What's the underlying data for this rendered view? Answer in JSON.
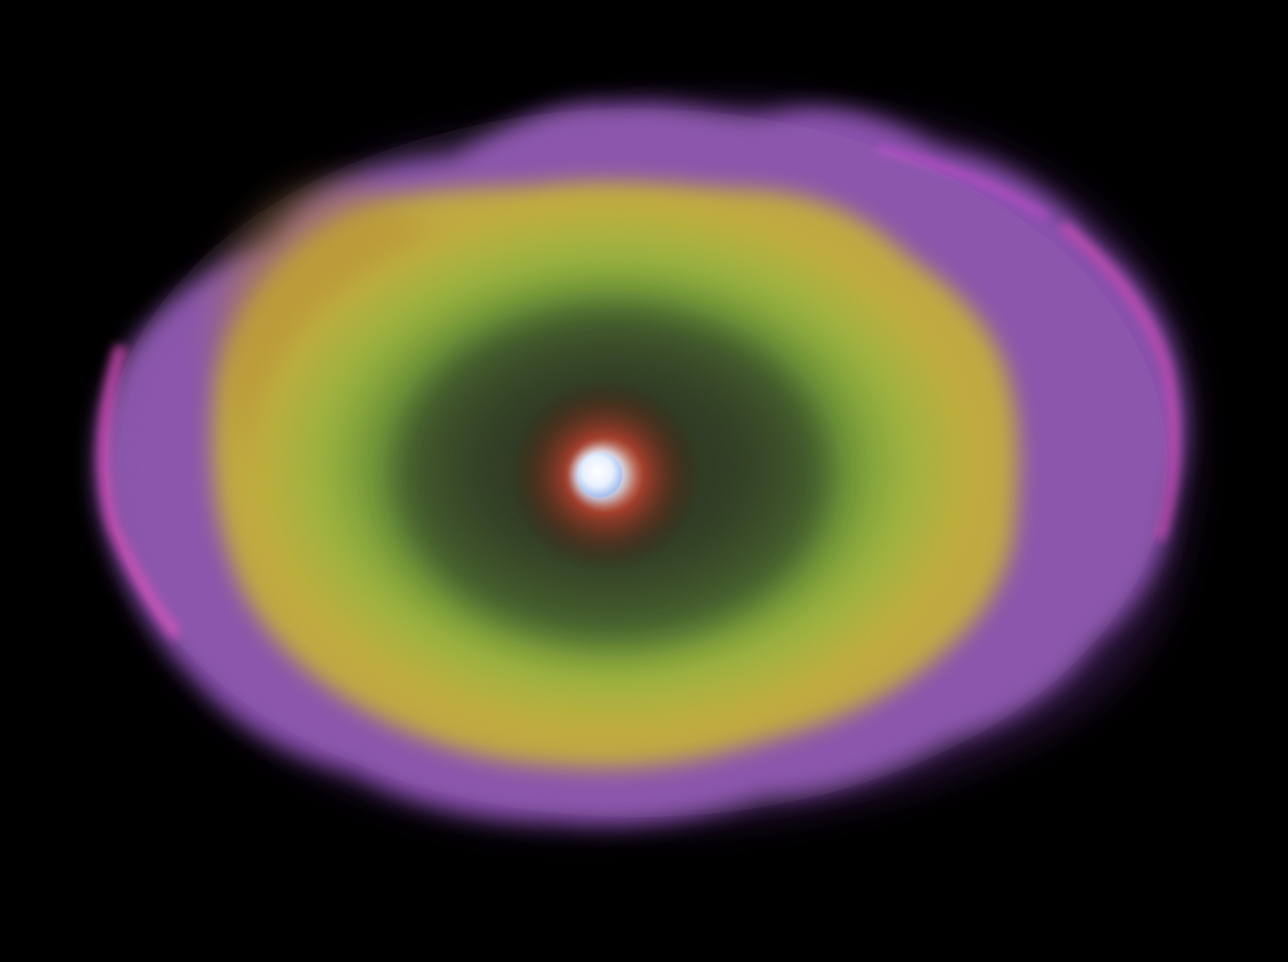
{
  "scene": {
    "description_tag": "nebula",
    "background_color": "#000000",
    "colors": {
      "outer_shell": "#9b5fc0",
      "outer_rim_highlight": "#e04fc0",
      "mid_shell": "#c9b43a",
      "inner_shell": "#6fa83a",
      "inner_dark": "#2f3a1c",
      "core_glow": "#c0392b",
      "central_star": "#dce8ff"
    }
  }
}
